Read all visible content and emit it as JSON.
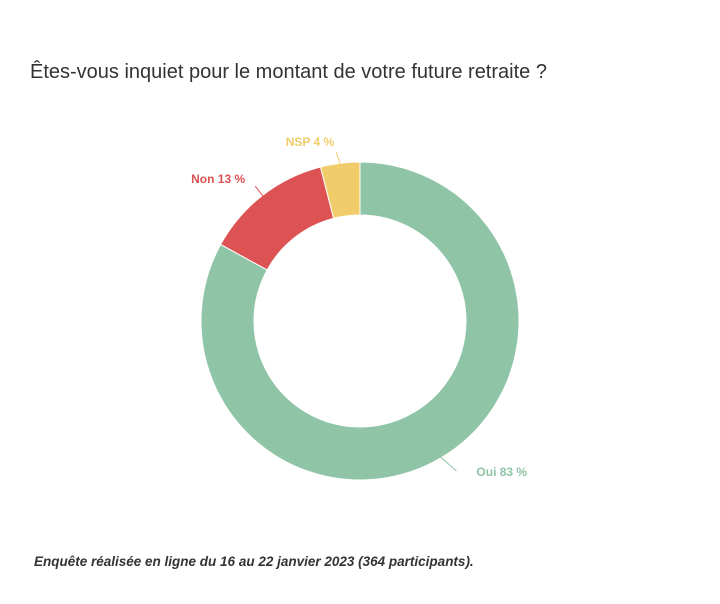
{
  "chart_data": {
    "type": "pie",
    "donut": true,
    "title": "Êtes-vous inquiet pour le montant de votre future retraite ?",
    "slices": [
      {
        "label": "Oui",
        "value": 83,
        "display": "Oui 83 %",
        "color": "#8fc4a7"
      },
      {
        "label": "Non",
        "value": 13,
        "display": "Non 13 %",
        "color": "#dd5252"
      },
      {
        "label": "NSP",
        "value": 4,
        "display": "NSP 4 %",
        "color": "#f0cd6a"
      }
    ],
    "note": "Enquête réalisée en ligne du 16 au 22 janvier 2023 (364 participants)."
  }
}
